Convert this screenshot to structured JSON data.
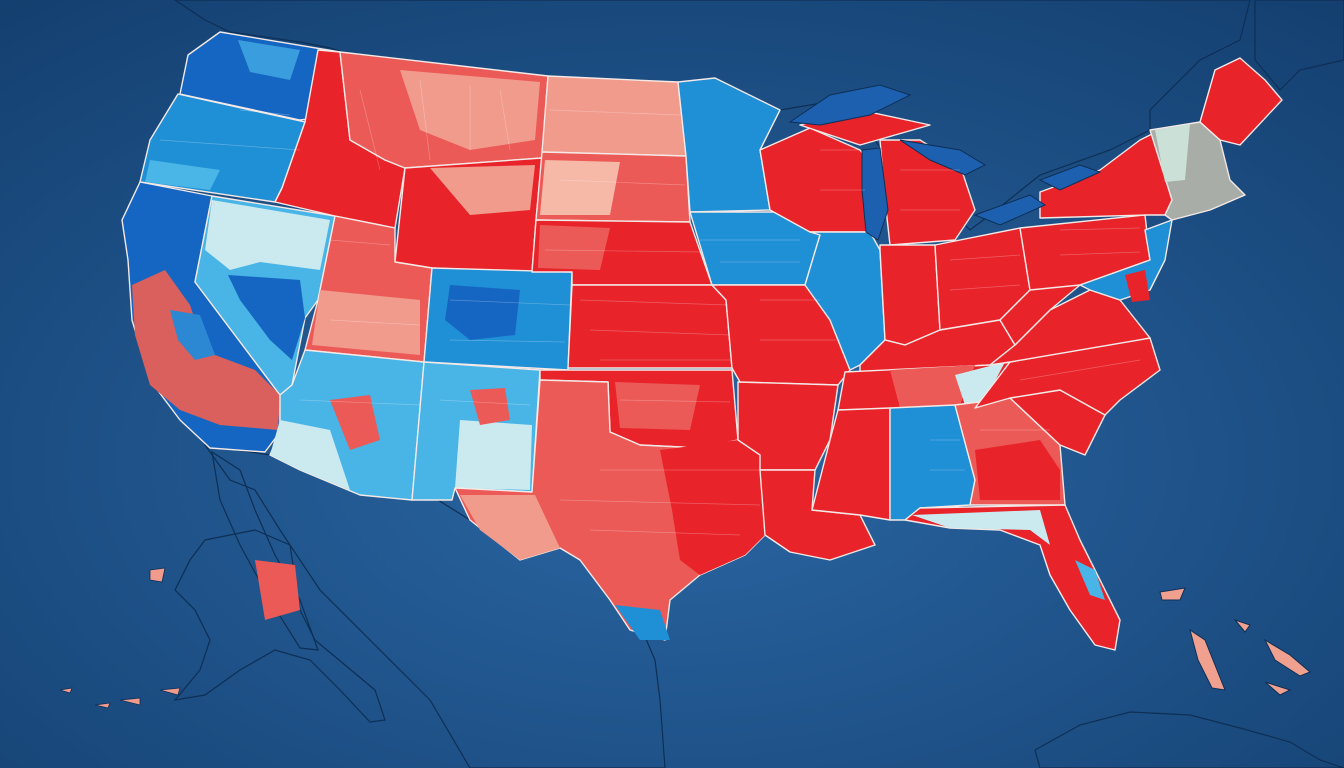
{
  "map": {
    "colors": {
      "ocean": "#1d4f86",
      "ocean_light": "#2a66a3",
      "canada": "#9fb865",
      "mexico": "#b9b6b1",
      "red_strong": "#e8232a",
      "red_mid": "#ec5a57",
      "red_light": "#f19b8d",
      "red_pale": "#f6b8a7",
      "blue_strong": "#1566c2",
      "blue_mid": "#1f8fd6",
      "blue_light": "#49b4e6",
      "blue_pale": "#cbeaf0",
      "gray": "#a8ada7"
    },
    "regions": [
      {
        "name": "washington",
        "party": "blue"
      },
      {
        "name": "oregon",
        "party": "blue"
      },
      {
        "name": "california",
        "party": "mixed"
      },
      {
        "name": "nevada",
        "party": "blue"
      },
      {
        "name": "idaho",
        "party": "red"
      },
      {
        "name": "montana",
        "party": "red"
      },
      {
        "name": "wyoming",
        "party": "red"
      },
      {
        "name": "utah",
        "party": "red"
      },
      {
        "name": "colorado",
        "party": "blue"
      },
      {
        "name": "arizona",
        "party": "blue"
      },
      {
        "name": "new-mexico",
        "party": "blue"
      },
      {
        "name": "north-dakota",
        "party": "red"
      },
      {
        "name": "south-dakota",
        "party": "red"
      },
      {
        "name": "nebraska",
        "party": "red"
      },
      {
        "name": "kansas",
        "party": "red"
      },
      {
        "name": "oklahoma",
        "party": "red"
      },
      {
        "name": "texas",
        "party": "red"
      },
      {
        "name": "minnesota",
        "party": "blue"
      },
      {
        "name": "iowa",
        "party": "blue"
      },
      {
        "name": "missouri",
        "party": "red"
      },
      {
        "name": "arkansas",
        "party": "red"
      },
      {
        "name": "louisiana",
        "party": "red"
      },
      {
        "name": "wisconsin",
        "party": "red"
      },
      {
        "name": "illinois",
        "party": "blue"
      },
      {
        "name": "michigan",
        "party": "red"
      },
      {
        "name": "indiana",
        "party": "red"
      },
      {
        "name": "ohio",
        "party": "red"
      },
      {
        "name": "kentucky",
        "party": "red"
      },
      {
        "name": "tennessee",
        "party": "red"
      },
      {
        "name": "mississippi",
        "party": "red"
      },
      {
        "name": "alabama",
        "party": "blue"
      },
      {
        "name": "georgia",
        "party": "red"
      },
      {
        "name": "florida",
        "party": "red"
      },
      {
        "name": "south-carolina",
        "party": "red"
      },
      {
        "name": "north-carolina",
        "party": "red"
      },
      {
        "name": "virginia",
        "party": "red"
      },
      {
        "name": "west-virginia",
        "party": "red"
      },
      {
        "name": "pennsylvania",
        "party": "red"
      },
      {
        "name": "new-york",
        "party": "red"
      },
      {
        "name": "new-england",
        "party": "gray"
      },
      {
        "name": "maine",
        "party": "red"
      },
      {
        "name": "alaska",
        "party": "red"
      }
    ]
  }
}
